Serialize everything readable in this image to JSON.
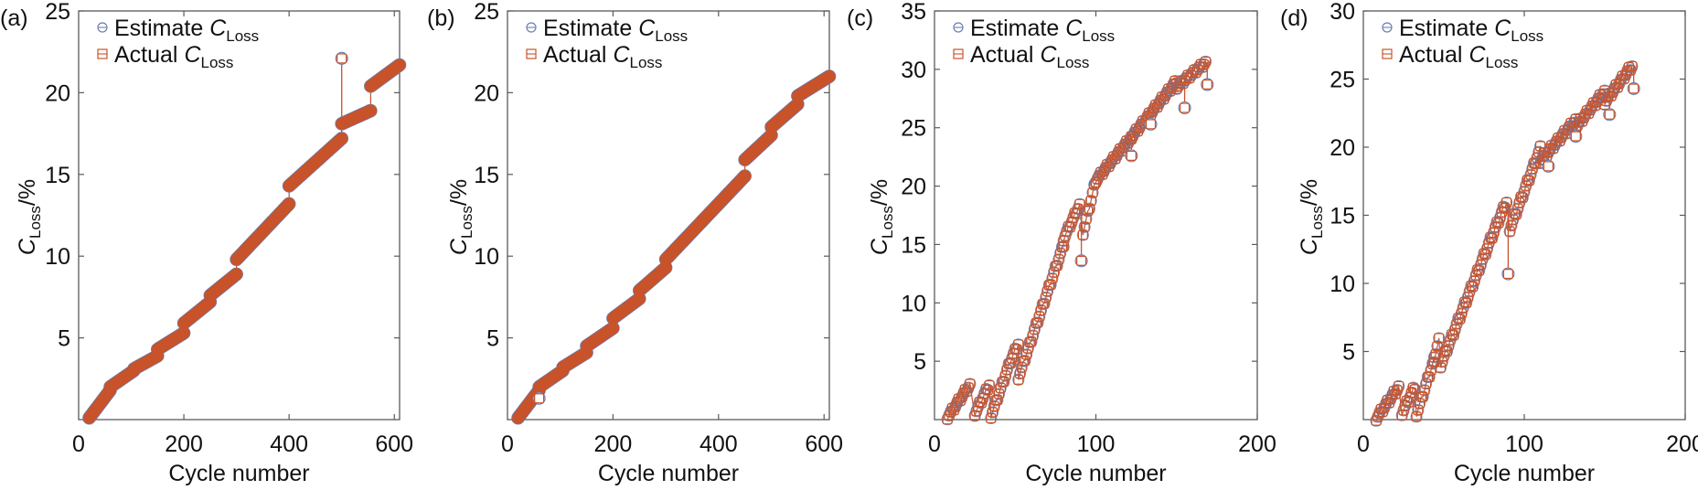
{
  "colors": {
    "estimate": "#6b7fb5",
    "actual": "#c8532a",
    "axis": "#5a5a5a",
    "text": "#111111"
  },
  "legend": {
    "estimate_prefix": "Estimate ",
    "actual_prefix": "Actual ",
    "symbol": "C",
    "subscript": "Loss",
    "estimate_icon": "circle-marker",
    "actual_icon": "square-marker"
  },
  "chart_data": [
    {
      "type": "line",
      "panel_label": "(a)",
      "xlabel": "Cycle number",
      "ylabel_symbol": "C",
      "ylabel_subscript": "Loss",
      "ylabel_suffix": "/%",
      "xlim": [
        0,
        610
      ],
      "ylim": [
        0,
        25
      ],
      "xticks": [
        0,
        200,
        400,
        600
      ],
      "yticks": [
        5,
        10,
        15,
        20,
        25
      ],
      "legend": "top-left",
      "marker_style": "dense",
      "segments": [
        [
          [
            20,
            0.1
          ],
          [
            60,
            1.8
          ]
        ],
        [
          [
            60,
            2.0
          ],
          [
            105,
            3.0
          ]
        ],
        [
          [
            105,
            3.1
          ],
          [
            150,
            3.9
          ]
        ],
        [
          [
            150,
            4.3
          ],
          [
            200,
            5.3
          ]
        ],
        [
          [
            200,
            5.9
          ],
          [
            250,
            7.2
          ]
        ],
        [
          [
            250,
            7.6
          ],
          [
            300,
            8.9
          ]
        ],
        [
          [
            300,
            9.8
          ],
          [
            400,
            13.2
          ]
        ],
        [
          [
            400,
            14.3
          ],
          [
            500,
            17.2
          ]
        ],
        [
          [
            500,
            18.1
          ],
          [
            555,
            18.9
          ]
        ],
        [
          [
            555,
            20.4
          ],
          [
            610,
            21.7
          ]
        ]
      ],
      "outliers": [
        {
          "x": 500,
          "actual": 22.1,
          "estimate": 18.1
        }
      ],
      "series": [
        {
          "name": "Estimate C_Loss",
          "marker": "circle"
        },
        {
          "name": "Actual C_Loss",
          "marker": "square"
        }
      ]
    },
    {
      "type": "line",
      "panel_label": "(b)",
      "xlabel": "Cycle number",
      "ylabel_symbol": "C",
      "ylabel_subscript": "Loss",
      "ylabel_suffix": "/%",
      "xlim": [
        0,
        610
      ],
      "ylim": [
        0,
        25
      ],
      "xticks": [
        0,
        200,
        400,
        600
      ],
      "yticks": [
        5,
        10,
        15,
        20,
        25
      ],
      "legend": "top-left",
      "marker_style": "dense",
      "segments": [
        [
          [
            20,
            0.1
          ],
          [
            60,
            1.8
          ]
        ],
        [
          [
            60,
            2.0
          ],
          [
            105,
            3.0
          ]
        ],
        [
          [
            105,
            3.2
          ],
          [
            150,
            4.1
          ]
        ],
        [
          [
            150,
            4.5
          ],
          [
            200,
            5.6
          ]
        ],
        [
          [
            200,
            6.2
          ],
          [
            250,
            7.4
          ]
        ],
        [
          [
            250,
            7.9
          ],
          [
            300,
            9.3
          ]
        ],
        [
          [
            300,
            9.8
          ],
          [
            450,
            14.9
          ]
        ],
        [
          [
            450,
            15.9
          ],
          [
            500,
            17.4
          ]
        ],
        [
          [
            500,
            17.9
          ],
          [
            550,
            19.3
          ]
        ],
        [
          [
            550,
            19.8
          ],
          [
            610,
            21.0
          ]
        ]
      ],
      "outliers": [
        {
          "x": 60,
          "actual": 1.3,
          "estimate": 1.3
        }
      ],
      "series": [
        {
          "name": "Estimate C_Loss",
          "marker": "circle"
        },
        {
          "name": "Actual C_Loss",
          "marker": "square"
        }
      ]
    },
    {
      "type": "line",
      "panel_label": "(c)",
      "xlabel": "Cycle number",
      "ylabel_symbol": "C",
      "ylabel_subscript": "Loss",
      "ylabel_suffix": "/%",
      "xlim": [
        0,
        200
      ],
      "ylim": [
        0,
        35
      ],
      "xticks": [
        0,
        100,
        200
      ],
      "yticks": [
        5,
        10,
        15,
        20,
        25,
        30,
        35
      ],
      "legend": "top-left",
      "marker_style": "open",
      "segments": [
        [
          [
            8,
            0.2
          ],
          [
            22,
            3.0
          ]
        ],
        [
          [
            25,
            0.5
          ],
          [
            34,
            3.0
          ]
        ],
        [
          [
            35,
            0.3
          ],
          [
            47,
            5.0
          ]
        ],
        [
          [
            47,
            5.0
          ],
          [
            52,
            6.5
          ]
        ],
        [
          [
            52,
            3.6
          ],
          [
            80,
            15.0
          ]
        ],
        [
          [
            80,
            15.5
          ],
          [
            90,
            18.4
          ]
        ],
        [
          [
            92,
            16.0
          ],
          [
            100,
            20.5
          ]
        ],
        [
          [
            100,
            20.5
          ],
          [
            122,
            24.2
          ]
        ],
        [
          [
            122,
            24.2
          ],
          [
            150,
            29.0
          ]
        ],
        [
          [
            150,
            28.5
          ],
          [
            168,
            30.6
          ]
        ]
      ],
      "outliers": [
        {
          "x": 91,
          "actual": 13.6,
          "estimate": 13.6
        },
        {
          "x": 155,
          "actual": 26.7,
          "estimate": 26.7
        },
        {
          "x": 169,
          "actual": 28.7,
          "estimate": 28.7
        },
        {
          "x": 134,
          "actual": 25.3,
          "estimate": 25.3
        },
        {
          "x": 122,
          "actual": 22.6,
          "estimate": 22.6
        }
      ],
      "series": [
        {
          "name": "Estimate C_Loss",
          "marker": "circle"
        },
        {
          "name": "Actual C_Loss",
          "marker": "square"
        }
      ]
    },
    {
      "type": "line",
      "panel_label": "(d)",
      "xlabel": "Cycle number",
      "ylabel_symbol": "C",
      "ylabel_subscript": "Loss",
      "ylabel_suffix": "/%",
      "xlim": [
        0,
        200
      ],
      "ylim": [
        0,
        30
      ],
      "xticks": [
        0,
        100,
        200
      ],
      "yticks": [
        5,
        10,
        15,
        20,
        25,
        30
      ],
      "legend": "top-left",
      "marker_style": "open",
      "segments": [
        [
          [
            8,
            0.1
          ],
          [
            22,
            2.4
          ]
        ],
        [
          [
            24,
            0.5
          ],
          [
            32,
            2.4
          ]
        ],
        [
          [
            33,
            0.4
          ],
          [
            44,
            4.4
          ]
        ],
        [
          [
            44,
            4.4
          ],
          [
            47,
            5.8
          ]
        ],
        [
          [
            48,
            4.0
          ],
          [
            80,
            13.5
          ]
        ],
        [
          [
            80,
            13.5
          ],
          [
            89,
            16.0
          ]
        ],
        [
          [
            91,
            14.0
          ],
          [
            110,
            19.9
          ]
        ],
        [
          [
            110,
            19.0
          ],
          [
            132,
            22.0
          ]
        ],
        [
          [
            132,
            21.5
          ],
          [
            150,
            24.1
          ]
        ],
        [
          [
            150,
            23.3
          ],
          [
            167,
            26.0
          ]
        ]
      ],
      "outliers": [
        {
          "x": 90,
          "actual": 10.7,
          "estimate": 10.7
        },
        {
          "x": 153,
          "actual": 22.4,
          "estimate": 22.4
        },
        {
          "x": 168,
          "actual": 24.3,
          "estimate": 24.3
        },
        {
          "x": 132,
          "actual": 20.8,
          "estimate": 20.8
        },
        {
          "x": 115,
          "actual": 18.6,
          "estimate": 18.6
        }
      ],
      "series": [
        {
          "name": "Estimate C_Loss",
          "marker": "circle"
        },
        {
          "name": "Actual C_Loss",
          "marker": "square"
        }
      ]
    }
  ]
}
